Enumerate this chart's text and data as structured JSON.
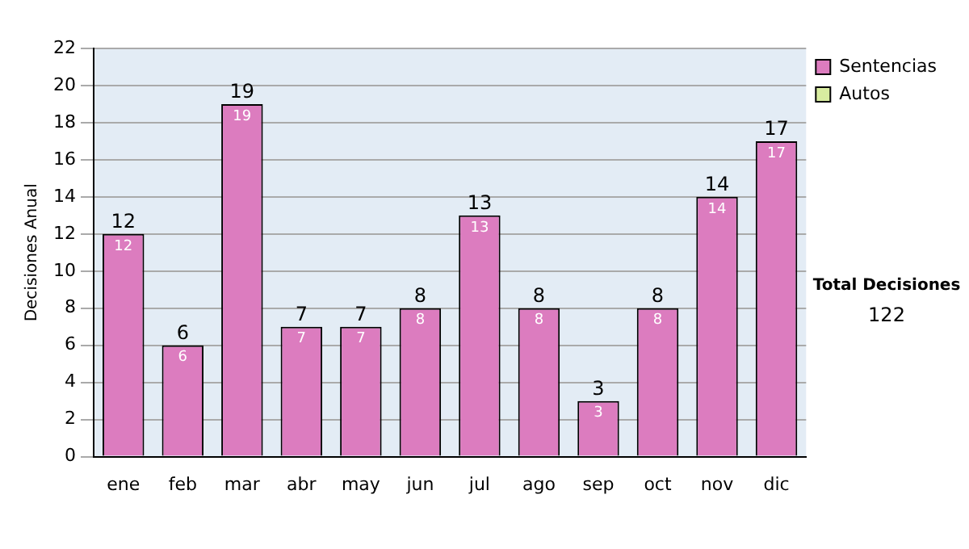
{
  "chart_data": {
    "type": "bar",
    "ylabel": "Decisiones Anual",
    "categories": [
      "ene",
      "feb",
      "mar",
      "abr",
      "may",
      "jun",
      "jul",
      "ago",
      "sep",
      "oct",
      "nov",
      "dic"
    ],
    "series": [
      {
        "name": "Sentencias",
        "color": "#dc7cbf",
        "values": [
          12,
          6,
          19,
          7,
          7,
          8,
          13,
          8,
          3,
          8,
          14,
          17
        ]
      },
      {
        "name": "Autos",
        "color": "#d8eca0",
        "values": [
          null,
          null,
          null,
          null,
          null,
          null,
          null,
          null,
          null,
          null,
          null,
          null
        ]
      }
    ],
    "stacked": true,
    "totals": [
      "12",
      "6",
      "19",
      "7",
      "7",
      "8",
      "13",
      "8",
      "3",
      "8",
      "14",
      "17"
    ],
    "data_labels": true,
    "ylim": [
      0,
      22
    ],
    "yticks": [
      0,
      2,
      4,
      6,
      8,
      10,
      12,
      14,
      16,
      18,
      20,
      22
    ],
    "grid": "y",
    "legend": "right",
    "annotations": [
      "Total Decisiones",
      "122"
    ]
  }
}
